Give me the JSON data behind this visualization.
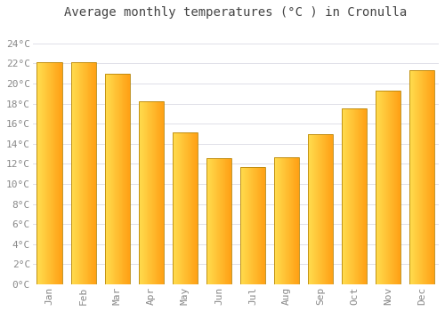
{
  "title": "Average monthly temperatures (°C ) in Cronulla",
  "months": [
    "Jan",
    "Feb",
    "Mar",
    "Apr",
    "May",
    "Jun",
    "Jul",
    "Aug",
    "Sep",
    "Oct",
    "Nov",
    "Dec"
  ],
  "values": [
    22.1,
    22.1,
    21.0,
    18.2,
    15.1,
    12.6,
    11.7,
    12.7,
    15.0,
    17.5,
    19.3,
    21.3
  ],
  "bar_color_left": "#FFD84A",
  "bar_color_right": "#FFA010",
  "bar_edge_color": "#B8860B",
  "ylim": [
    0,
    26
  ],
  "yticks": [
    0,
    2,
    4,
    6,
    8,
    10,
    12,
    14,
    16,
    18,
    20,
    22,
    24
  ],
  "ytick_labels": [
    "0°C",
    "2°C",
    "4°C",
    "6°C",
    "8°C",
    "10°C",
    "12°C",
    "14°C",
    "16°C",
    "18°C",
    "20°C",
    "22°C",
    "24°C"
  ],
  "background_color": "#FFFFFF",
  "grid_color": "#E0E0E8",
  "title_fontsize": 10,
  "tick_fontsize": 8,
  "font_family": "monospace"
}
